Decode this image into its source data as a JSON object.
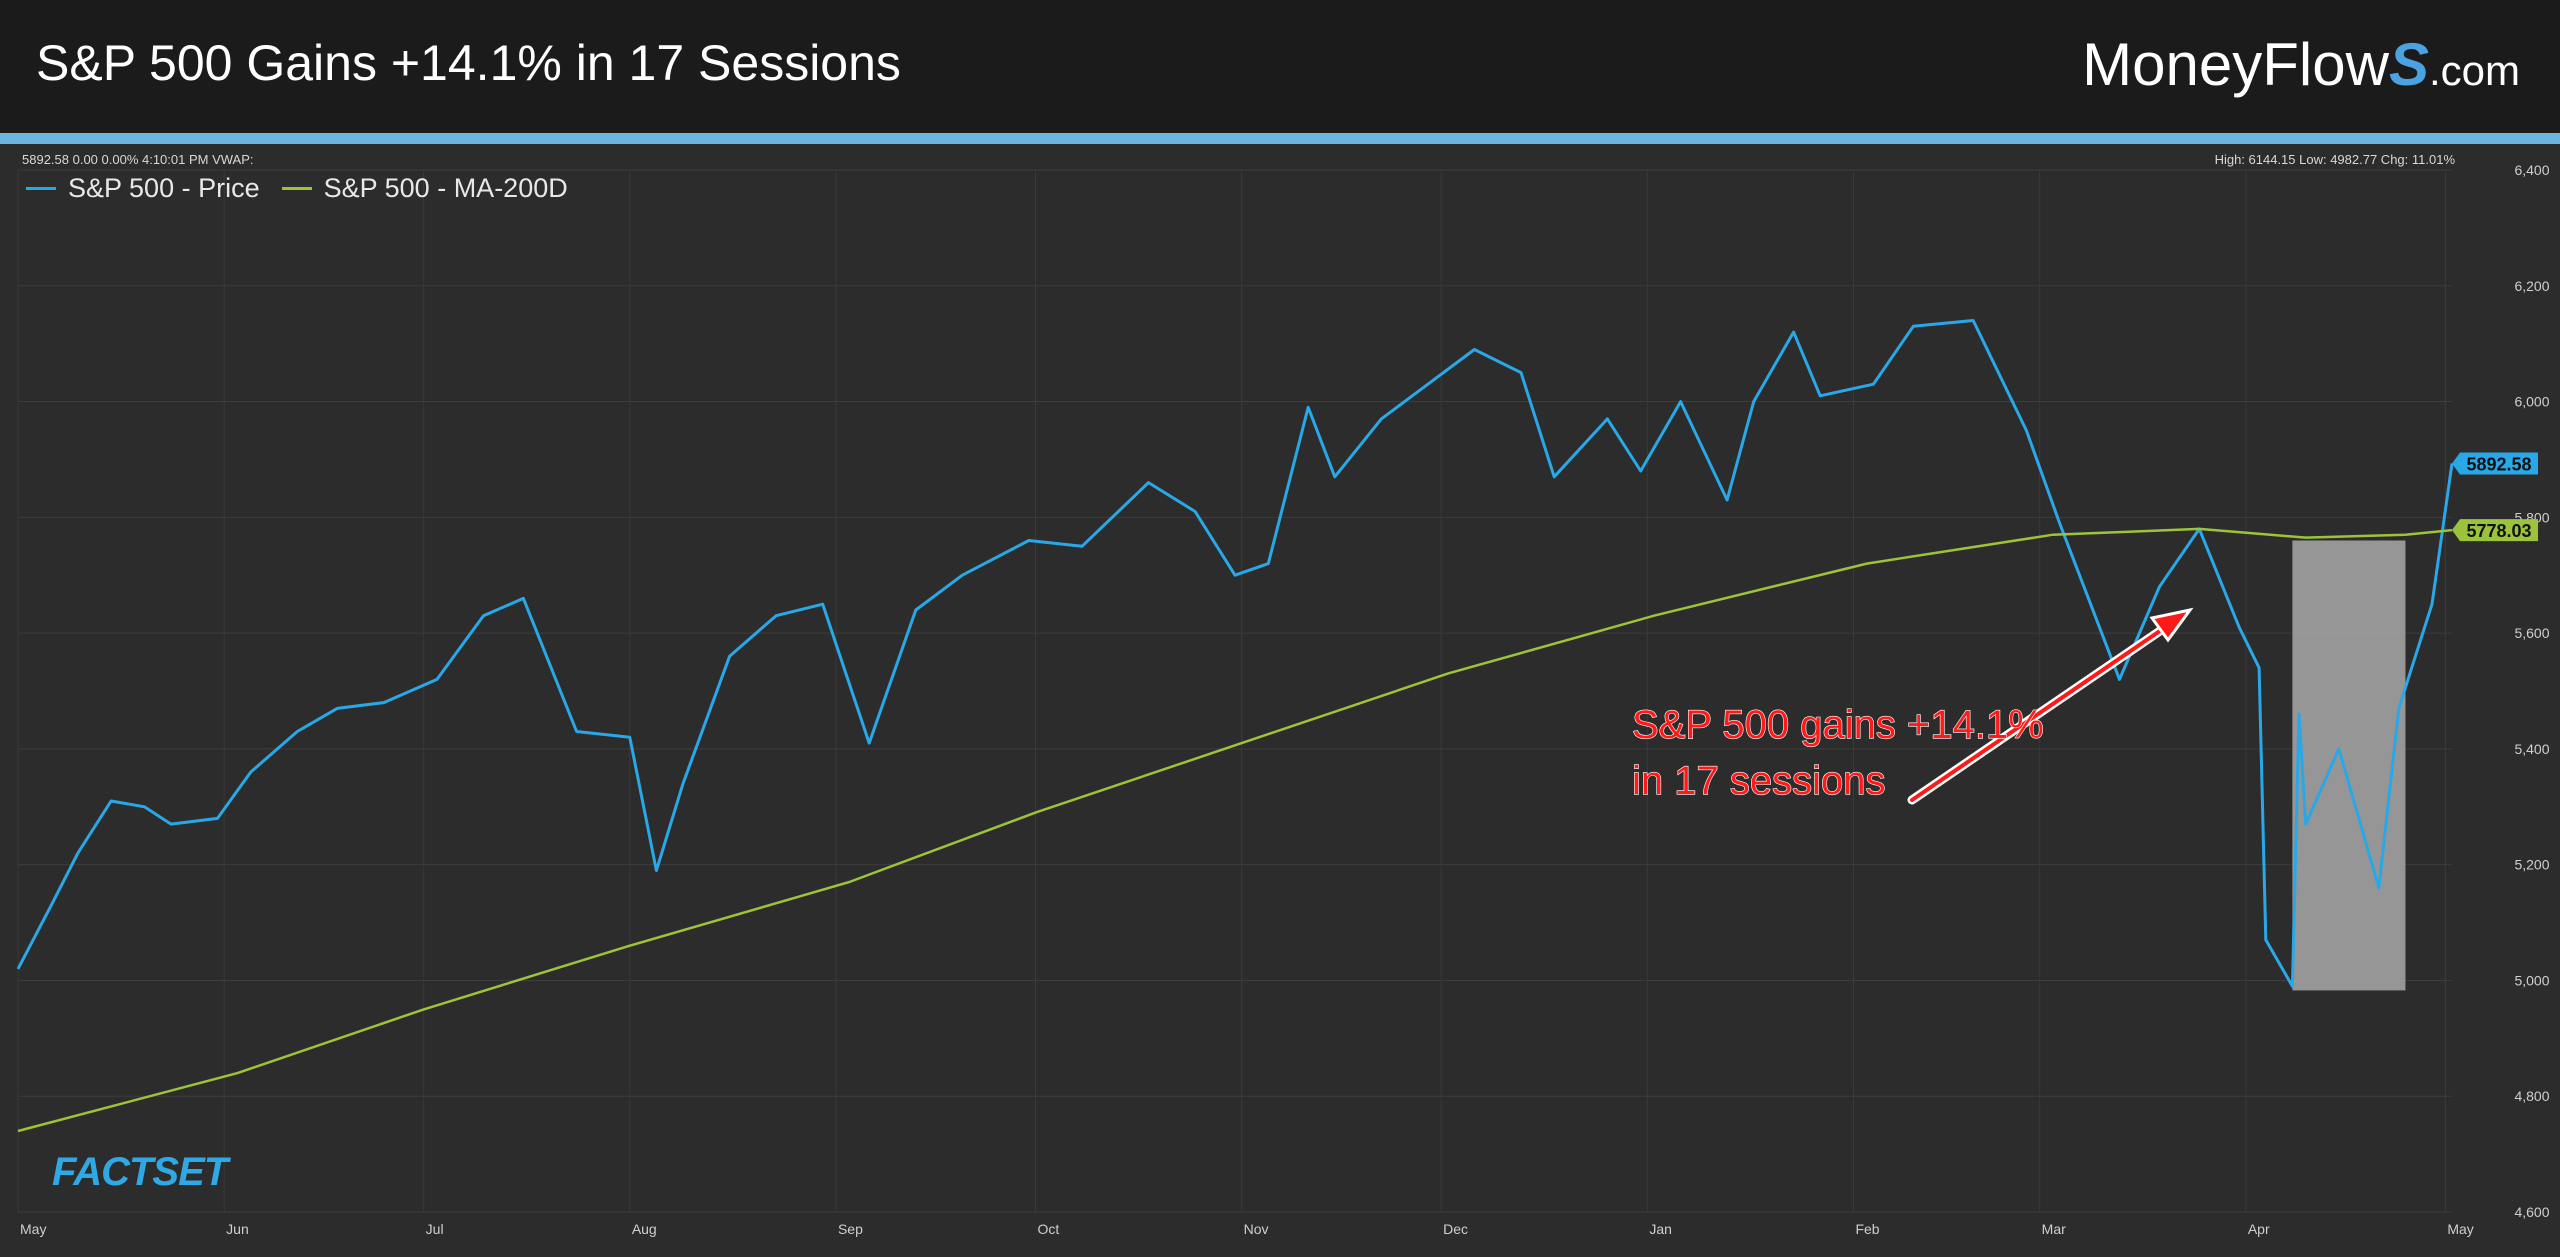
{
  "header": {
    "title": "S&P 500 Gains +14.1% in 17 Sessions",
    "brand_main": "MoneyFlow",
    "brand_s": "S",
    "brand_tld": ".com"
  },
  "info": {
    "left": "5892.58 0.00 0.00% 4:10:01 PM VWAP:",
    "right": "High: 6144.15 Low: 4982.77 Chg: 11.01%"
  },
  "logo": "FACTSET",
  "colors": {
    "price": "#29a8e8",
    "ma": "#9bc43a",
    "annotation": "#ff1a1a",
    "accent": "#6cb5e0"
  },
  "chart_data": {
    "type": "line",
    "title": "",
    "xlabel": "",
    "ylabel": "",
    "ylim": [
      4600,
      6400
    ],
    "y_ticks": [
      "4,600",
      "4,800",
      "5,000",
      "5,200",
      "5,400",
      "5,600",
      "5,800",
      "6,000",
      "6,200",
      "6,400"
    ],
    "x_ticks": [
      "May",
      "Jun",
      "Jul",
      "Aug",
      "Sep",
      "Oct",
      "Nov",
      "Dec",
      "Jan",
      "Feb",
      "Mar",
      "Apr",
      "May"
    ],
    "grid": true,
    "legend_position": "top-left",
    "series": [
      {
        "name": "S&P 500 - Price",
        "last_value_label": "5892.58",
        "x": [
          "2024-05-01",
          "2024-05-06",
          "2024-05-10",
          "2024-05-15",
          "2024-05-20",
          "2024-05-24",
          "2024-05-31",
          "2024-06-05",
          "2024-06-12",
          "2024-06-18",
          "2024-06-25",
          "2024-07-03",
          "2024-07-10",
          "2024-07-16",
          "2024-07-24",
          "2024-08-01",
          "2024-08-05",
          "2024-08-09",
          "2024-08-16",
          "2024-08-23",
          "2024-08-30",
          "2024-09-06",
          "2024-09-13",
          "2024-09-20",
          "2024-09-30",
          "2024-10-08",
          "2024-10-18",
          "2024-10-25",
          "2024-10-31",
          "2024-11-05",
          "2024-11-11",
          "2024-11-15",
          "2024-11-22",
          "2024-11-29",
          "2024-12-06",
          "2024-12-13",
          "2024-12-18",
          "2024-12-26",
          "2024-12-31",
          "2025-01-06",
          "2025-01-13",
          "2025-01-17",
          "2025-01-23",
          "2025-01-27",
          "2025-02-04",
          "2025-02-10",
          "2025-02-19",
          "2025-02-27",
          "2025-03-04",
          "2025-03-10",
          "2025-03-13",
          "2025-03-19",
          "2025-03-25",
          "2025-03-31",
          "2025-04-03",
          "2025-04-04",
          "2025-04-08",
          "2025-04-09",
          "2025-04-10",
          "2025-04-15",
          "2025-04-21",
          "2025-04-24",
          "2025-04-29",
          "2025-05-02"
        ],
        "values": [
          5020,
          5130,
          5220,
          5310,
          5300,
          5270,
          5280,
          5360,
          5430,
          5470,
          5480,
          5520,
          5630,
          5660,
          5430,
          5420,
          5190,
          5340,
          5560,
          5630,
          5650,
          5410,
          5640,
          5700,
          5760,
          5750,
          5860,
          5810,
          5700,
          5720,
          5990,
          5870,
          5970,
          6030,
          6090,
          6050,
          5870,
          5970,
          5880,
          6000,
          5830,
          6000,
          6120,
          6010,
          6030,
          6130,
          6140,
          5950,
          5790,
          5610,
          5520,
          5680,
          5780,
          5610,
          5540,
          5070,
          4990,
          5460,
          5270,
          5400,
          5160,
          5470,
          5650,
          5893
        ]
      },
      {
        "name": "S&P 500 - MA-200D",
        "last_value_label": "5778.03",
        "x": [
          "2024-05-01",
          "2024-06-03",
          "2024-07-01",
          "2024-08-01",
          "2024-09-03",
          "2024-10-01",
          "2024-11-01",
          "2024-12-02",
          "2025-01-02",
          "2025-02-03",
          "2025-03-03",
          "2025-03-25",
          "2025-04-10",
          "2025-04-25",
          "2025-05-02"
        ],
        "values": [
          4740,
          4840,
          4950,
          5060,
          5170,
          5290,
          5410,
          5530,
          5630,
          5720,
          5770,
          5780,
          5765,
          5770,
          5778
        ]
      }
    ],
    "annotations": {
      "text_line1": "S&P 500 gains +14.1%",
      "text_line2": "in 17 sessions",
      "highlight_range": [
        "2025-04-08",
        "2025-05-02"
      ],
      "highlight_y": [
        4982.77,
        5760
      ]
    }
  }
}
